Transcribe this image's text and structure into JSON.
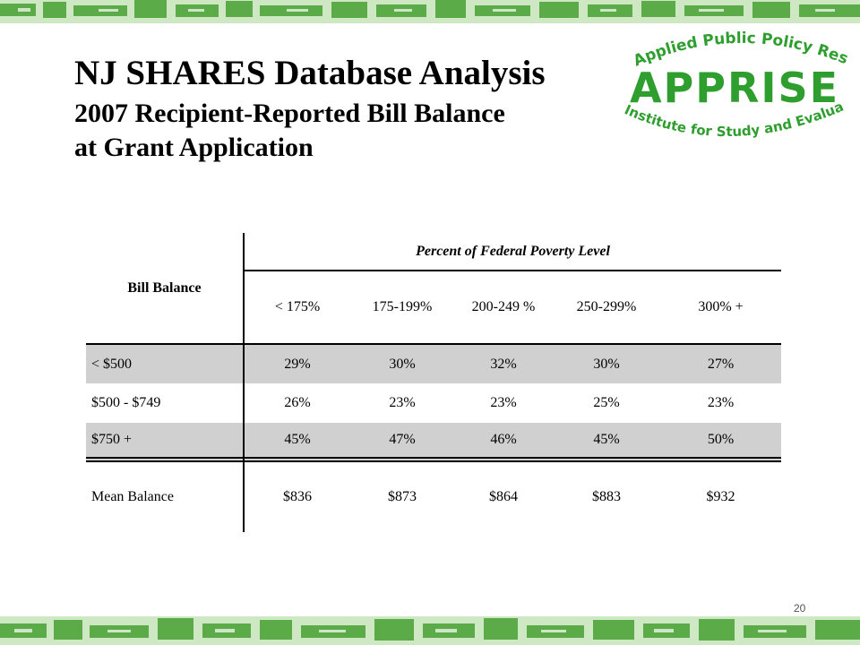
{
  "title": {
    "line1": "NJ SHARES Database Analysis",
    "line2": "2007 Recipient-Reported  Bill Balance",
    "line3": "at Grant Application"
  },
  "logo": {
    "top_text": "Applied Public Policy Research",
    "main_text": "APPRISE",
    "bottom_text": "Institute for Study and Evaluation",
    "color": "#2e9e2e"
  },
  "table": {
    "row_header_label": "Bill Balance",
    "group_header": "Percent of Federal Poverty Level",
    "columns": [
      "< 175%",
      "175-199%",
      "200-249 %",
      "250-299%",
      "300% +"
    ],
    "rows": [
      {
        "label": "< $500",
        "values": [
          "29%",
          "30%",
          "32%",
          "30%",
          "27%"
        ]
      },
      {
        "label": "$500 - $749",
        "values": [
          "26%",
          "23%",
          "23%",
          "25%",
          "23%"
        ]
      },
      {
        "label": "$750 +",
        "values": [
          "45%",
          "47%",
          "46%",
          "45%",
          "50%"
        ]
      }
    ],
    "mean_row": {
      "label": "Mean Balance",
      "values": [
        "$836",
        "$873",
        "$864",
        "$883",
        "$932"
      ]
    }
  },
  "page_number": "20",
  "colors": {
    "shaded_row": "#d0d0d0",
    "banner_green": "#5fb34a"
  }
}
